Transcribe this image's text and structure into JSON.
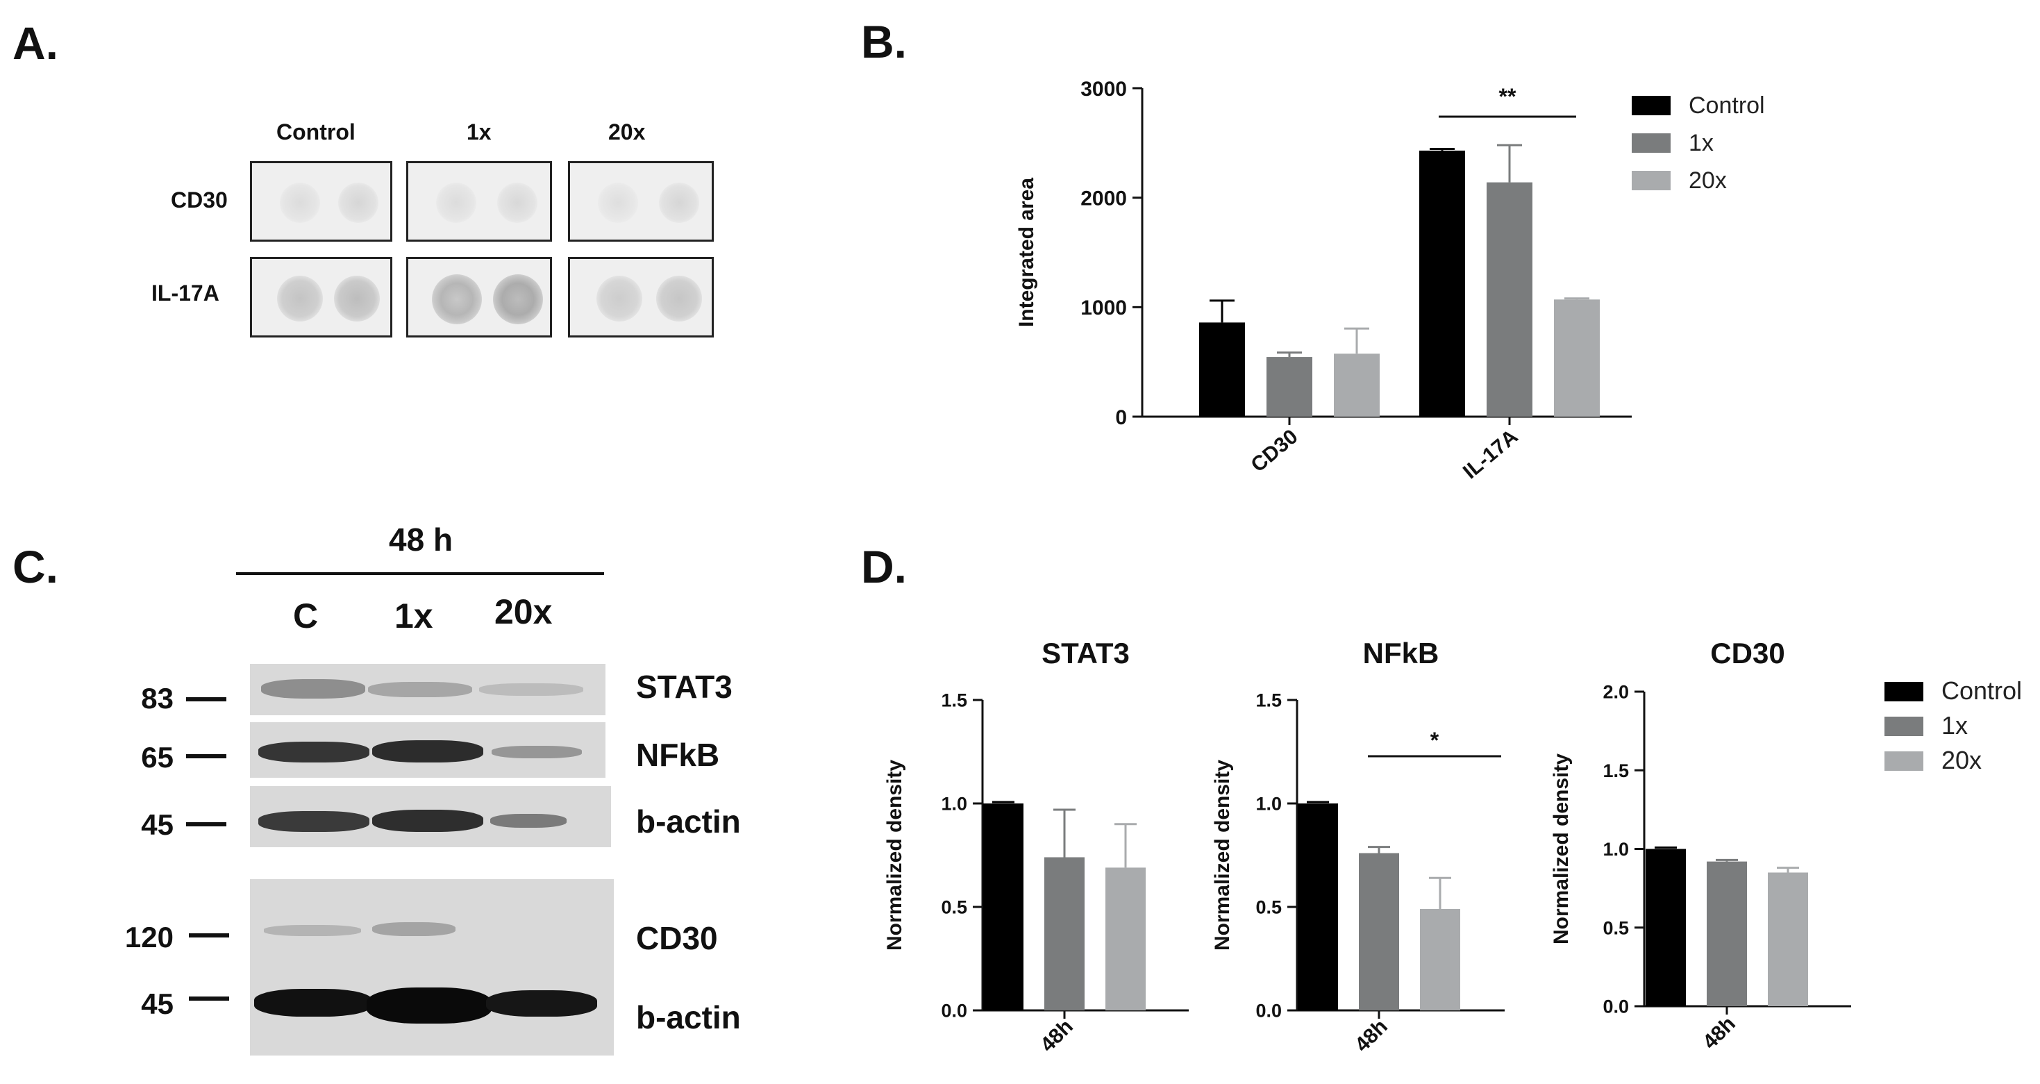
{
  "panels": {
    "a": {
      "letter": "A."
    },
    "b": {
      "letter": "B."
    },
    "c": {
      "letter": "C."
    },
    "d": {
      "letter": "D."
    }
  },
  "dot_blot": {
    "columns": [
      "Control",
      "1x",
      "20x"
    ],
    "rows": [
      "CD30",
      "IL-17A"
    ]
  },
  "western": {
    "timepoint": "48 h",
    "lanes": [
      "C",
      "1x",
      "20x"
    ],
    "mw_markers": [
      "83",
      "65",
      "45",
      "120",
      "45"
    ],
    "proteins": [
      "STAT3",
      "NFkB",
      "b-actin",
      "CD30",
      "b-actin"
    ]
  },
  "colors": {
    "control": "#000000",
    "1x": "#7a7c7d",
    "20x": "#a9abad"
  },
  "chart_data": [
    {
      "type": "bar",
      "panel": "B",
      "categories": [
        "CD30",
        "IL-17A"
      ],
      "series": [
        {
          "name": "Control",
          "values": [
            860,
            2430
          ],
          "errors": [
            200,
            15
          ]
        },
        {
          "name": "1x",
          "values": [
            545,
            2140
          ],
          "errors": [
            40,
            340
          ]
        },
        {
          "name": "20x",
          "values": [
            575,
            1070
          ],
          "errors": [
            230,
            10
          ]
        }
      ],
      "ylabel": "Integrated area",
      "ylim": [
        0,
        3000
      ],
      "yticks": [
        "0",
        "1000",
        "2000",
        "3000"
      ],
      "significance": "**",
      "legend": [
        "Control",
        "1x",
        "20x"
      ],
      "legend_position": "right"
    },
    {
      "type": "bar",
      "panel": "D",
      "title": "STAT3",
      "categories": [
        "48h"
      ],
      "series": [
        {
          "name": "Control",
          "values": [
            1.0
          ],
          "errors": [
            0
          ]
        },
        {
          "name": "1x",
          "values": [
            0.74
          ],
          "errors": [
            0.23
          ]
        },
        {
          "name": "20x",
          "values": [
            0.69
          ],
          "errors": [
            0.21
          ]
        }
      ],
      "ylabel": "Normalized density",
      "ylim": [
        0,
        1.5
      ],
      "yticks": [
        "0.0",
        "0.5",
        "1.0",
        "1.5"
      ]
    },
    {
      "type": "bar",
      "panel": "D",
      "title": "NFkB",
      "categories": [
        "48h"
      ],
      "series": [
        {
          "name": "Control",
          "values": [
            1.0
          ],
          "errors": [
            0
          ]
        },
        {
          "name": "1x",
          "values": [
            0.76
          ],
          "errors": [
            0.03
          ]
        },
        {
          "name": "20x",
          "values": [
            0.49
          ],
          "errors": [
            0.15
          ]
        }
      ],
      "ylabel": "Normalized density",
      "ylim": [
        0,
        1.5
      ],
      "yticks": [
        "0.0",
        "0.5",
        "1.0",
        "1.5"
      ],
      "significance": "*"
    },
    {
      "type": "bar",
      "panel": "D",
      "title": "CD30",
      "categories": [
        "48h"
      ],
      "series": [
        {
          "name": "Control",
          "values": [
            1.0
          ],
          "errors": [
            0
          ]
        },
        {
          "name": "1x",
          "values": [
            0.92
          ],
          "errors": [
            0.01
          ]
        },
        {
          "name": "20x",
          "values": [
            0.85
          ],
          "errors": [
            0.03
          ]
        }
      ],
      "ylabel": "Normalized density",
      "ylim": [
        0,
        2.0
      ],
      "yticks": [
        "0.0",
        "0.5",
        "1.0",
        "1.5",
        "2.0"
      ],
      "legend": [
        "Control",
        "1x",
        "20x"
      ],
      "legend_position": "right"
    }
  ]
}
